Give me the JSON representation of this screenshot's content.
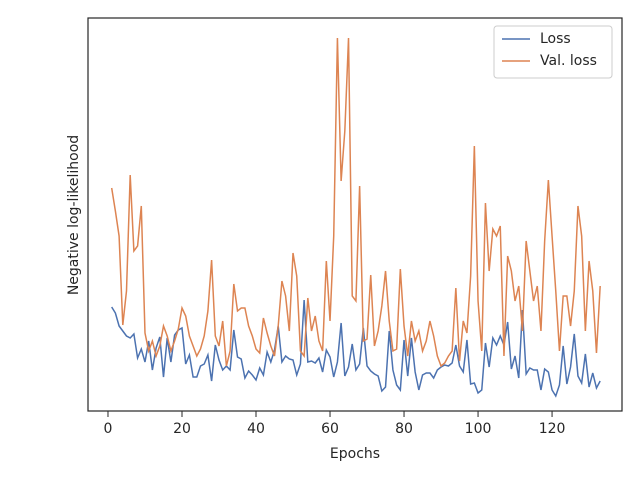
{
  "chart_data": {
    "type": "line",
    "x_label": "Epochs",
    "y_label": "Negative log-likelihood",
    "x": [
      1,
      2,
      3,
      4,
      5,
      6,
      7,
      8,
      9,
      10,
      11,
      12,
      13,
      14,
      15,
      16,
      17,
      18,
      19,
      20,
      21,
      22,
      23,
      24,
      25,
      26,
      27,
      28,
      29,
      30,
      31,
      32,
      33,
      34,
      35,
      36,
      37,
      38,
      39,
      40,
      41,
      42,
      43,
      44,
      45,
      46,
      47,
      48,
      49,
      50,
      51,
      52,
      53,
      54,
      55,
      56,
      57,
      58,
      59,
      60,
      61,
      62,
      63,
      64,
      65,
      66,
      67,
      68,
      69,
      70,
      71,
      72,
      73,
      74,
      75,
      76,
      77,
      78,
      79,
      80,
      81,
      82,
      83,
      84,
      85,
      86,
      87,
      88,
      89,
      90,
      91,
      92,
      93,
      94,
      95,
      96,
      97,
      98,
      99,
      100,
      101,
      102,
      103,
      104,
      105,
      106,
      107,
      108,
      109,
      110,
      111,
      112,
      113,
      114,
      115,
      116,
      117,
      118,
      119,
      120,
      121,
      122,
      123,
      124,
      125,
      126,
      127,
      128,
      129,
      130,
      131,
      132,
      133
    ],
    "series": [
      {
        "name": "Loss",
        "color": "#4c72b0",
        "values": [
          10.4,
          9.8,
          8.5,
          8.0,
          7.5,
          7.3,
          7.7,
          5.3,
          6.2,
          4.9,
          7.0,
          4.1,
          6.3,
          7.4,
          3.4,
          7.3,
          4.9,
          7.6,
          8.1,
          8.3,
          4.7,
          5.6,
          3.4,
          3.4,
          4.5,
          4.7,
          5.6,
          3.0,
          6.6,
          5.1,
          4.1,
          4.5,
          4.1,
          8.1,
          5.4,
          5.2,
          3.3,
          4.0,
          3.6,
          3.1,
          4.3,
          3.6,
          5.9,
          4.9,
          6.1,
          8.5,
          4.9,
          5.5,
          5.2,
          5.1,
          3.6,
          4.7,
          11.1,
          4.9,
          5.0,
          4.8,
          5.3,
          3.9,
          6.1,
          5.4,
          3.4,
          4.9,
          8.8,
          3.5,
          4.4,
          6.7,
          4.1,
          4.7,
          8.3,
          4.5,
          4.0,
          3.7,
          3.5,
          2.0,
          2.4,
          8.0,
          4.1,
          2.6,
          2.1,
          7.1,
          3.5,
          7.3,
          3.9,
          2.1,
          3.6,
          3.8,
          3.8,
          3.3,
          4.1,
          4.4,
          4.6,
          4.5,
          4.8,
          6.6,
          4.5,
          3.9,
          7.1,
          2.7,
          2.8,
          1.8,
          2.1,
          6.8,
          4.4,
          7.3,
          6.6,
          7.5,
          6.6,
          8.9,
          4.2,
          5.5,
          3.3,
          10.1,
          3.7,
          4.3,
          4.1,
          4.1,
          2.1,
          4.2,
          3.9,
          2.1,
          1.5,
          2.6,
          6.5,
          2.7,
          4.4,
          7.7,
          3.5,
          2.8,
          5.7,
          2.4,
          3.8,
          2.3,
          3.0
        ]
      },
      {
        "name": "Val. loss",
        "color": "#dd8452",
        "values": [
          22.3,
          20.0,
          17.5,
          8.6,
          12.0,
          23.6,
          16.0,
          16.5,
          20.5,
          7.8,
          6.0,
          7.0,
          5.5,
          6.5,
          8.5,
          7.5,
          6.0,
          7.0,
          8.2,
          10.3,
          9.5,
          7.5,
          6.5,
          5.5,
          6.2,
          7.5,
          10.0,
          15.1,
          7.5,
          6.5,
          9.0,
          4.5,
          6.0,
          12.7,
          10.0,
          10.3,
          10.3,
          8.5,
          7.5,
          6.2,
          5.8,
          9.3,
          7.8,
          6.5,
          5.5,
          8.5,
          13.0,
          11.5,
          8.0,
          15.8,
          13.5,
          6.0,
          5.5,
          11.3,
          8.0,
          9.5,
          7.0,
          6.0,
          15.0,
          9.0,
          17.5,
          37.3,
          23.0,
          28.0,
          37.3,
          11.5,
          11.0,
          22.5,
          7.0,
          7.2,
          13.6,
          6.5,
          8.0,
          10.5,
          14.0,
          9.0,
          6.0,
          6.2,
          14.2,
          8.5,
          5.5,
          9.0,
          7.0,
          8.0,
          6.0,
          7.0,
          9.0,
          7.5,
          5.5,
          4.5,
          4.8,
          5.5,
          6.0,
          12.3,
          5.0,
          9.0,
          7.8,
          13.5,
          26.5,
          11.0,
          6.0,
          20.8,
          14.0,
          18.2,
          17.5,
          18.5,
          5.5,
          15.5,
          14.0,
          11.0,
          12.5,
          8.0,
          17.0,
          14.0,
          11.0,
          12.5,
          8.0,
          17.0,
          23.1,
          17.5,
          12.0,
          6.0,
          11.5,
          11.5,
          8.5,
          12.0,
          20.5,
          17.5,
          8.0,
          15.0,
          12.0,
          5.8,
          12.5
        ]
      }
    ],
    "xlim": [
      -5.4,
      138.9
    ],
    "ylim": [
      0,
      39.3
    ],
    "xticks": [
      0,
      20,
      40,
      60,
      80,
      100,
      120
    ],
    "legend": "upper right"
  }
}
